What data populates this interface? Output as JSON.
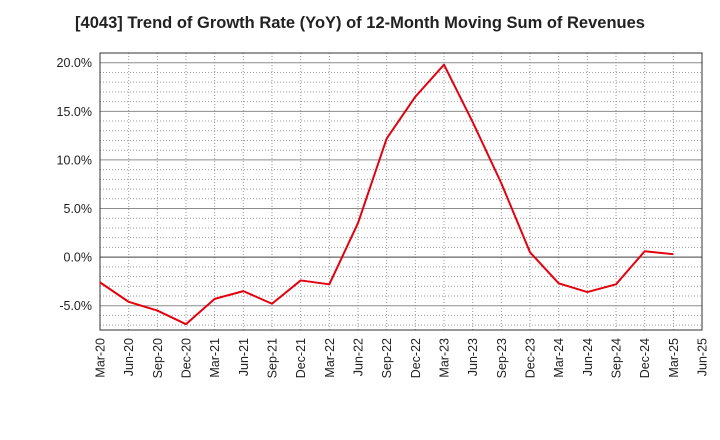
{
  "chart_data": {
    "type": "line",
    "title": "[4043]  Trend of Growth Rate (YoY) of 12-Month Moving Sum of Revenues",
    "xlabel": "",
    "ylabel": "",
    "categories": [
      "Mar-20",
      "Jun-20",
      "Sep-20",
      "Dec-20",
      "Mar-21",
      "Jun-21",
      "Sep-21",
      "Dec-21",
      "Mar-22",
      "Jun-22",
      "Sep-22",
      "Dec-22",
      "Mar-23",
      "Jun-23",
      "Sep-23",
      "Dec-23",
      "Mar-24",
      "Jun-24",
      "Sep-24",
      "Dec-24",
      "Mar-25",
      "Jun-25"
    ],
    "ylim": [
      -7.5,
      21.0
    ],
    "yticks": [
      20.0,
      15.0,
      10.0,
      5.0,
      0.0,
      -5.0
    ],
    "ytick_labels": [
      "20.0%",
      "15.0%",
      "10.0%",
      "5.0%",
      "0.0%",
      "-5.0%"
    ],
    "series": [
      {
        "values": [
          -2.6,
          -4.6,
          -5.5,
          -6.9,
          -4.3,
          -3.5,
          -4.8,
          -2.4,
          -2.8,
          3.5,
          12.2,
          16.5,
          19.8,
          13.9,
          7.6,
          0.5,
          -2.7,
          -3.6,
          -2.8,
          0.6,
          0.3,
          null
        ],
        "color": "#e3000f"
      }
    ],
    "grid": true,
    "legend": "none"
  }
}
